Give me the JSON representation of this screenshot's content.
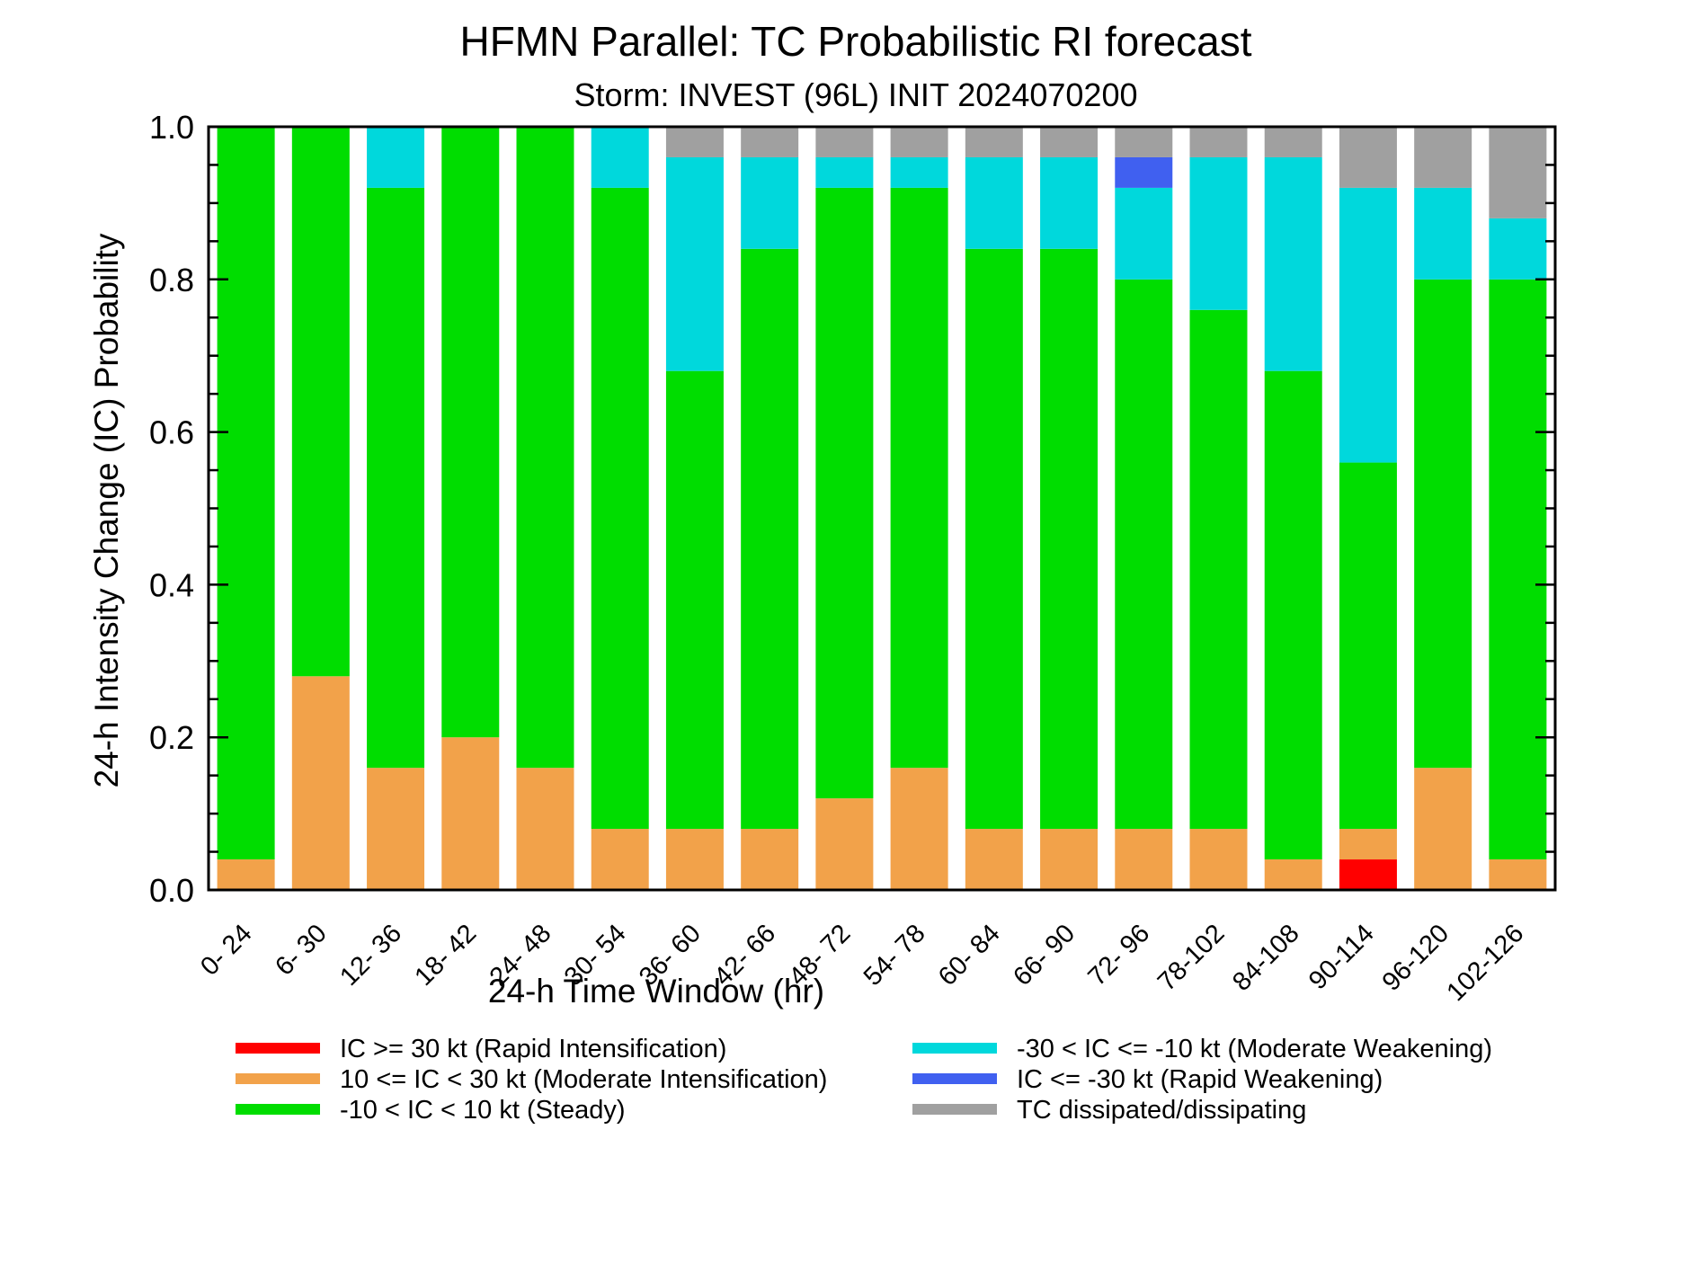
{
  "chart_data": {
    "type": "bar",
    "stacked": true,
    "title": "HFMN Parallel: TC Probabilistic RI forecast",
    "subtitle": "Storm: INVEST (96L) INIT 2024070200",
    "xlabel": "24-h Time Window (hr)",
    "ylabel": "24-h Intensity Change (IC) Probability",
    "ylim": [
      0,
      1
    ],
    "yticks": [
      "0.0",
      "0.2",
      "0.4",
      "0.6",
      "0.8",
      "1.0"
    ],
    "grid": false,
    "legend_position": "bottom",
    "categories": [
      "0- 24",
      "6- 30",
      "12- 36",
      "18- 42",
      "24- 48",
      "30- 54",
      "36- 60",
      "42- 66",
      "48- 72",
      "54- 78",
      "60- 84",
      "66- 90",
      "72- 96",
      "78-102",
      "84-108",
      "90-114",
      "96-120",
      "102-126"
    ],
    "series": [
      {
        "name": "IC >= 30 kt (Rapid Intensification)",
        "color": "#ff0000",
        "values": [
          0,
          0,
          0,
          0,
          0,
          0,
          0,
          0,
          0,
          0,
          0,
          0,
          0,
          0,
          0,
          0.04,
          0,
          0
        ]
      },
      {
        "name": "10 <= IC < 30 kt (Moderate Intensification)",
        "color": "#f2a24a",
        "values": [
          0.04,
          0.28,
          0.16,
          0.2,
          0.16,
          0.08,
          0.08,
          0.08,
          0.12,
          0.16,
          0.08,
          0.08,
          0.08,
          0.08,
          0.04,
          0.04,
          0.16,
          0.04
        ]
      },
      {
        "name": "-10 < IC < 10 kt (Steady)",
        "color": "#00dd00",
        "values": [
          0.96,
          0.72,
          0.76,
          0.8,
          0.84,
          0.84,
          0.6,
          0.76,
          0.8,
          0.76,
          0.76,
          0.76,
          0.72,
          0.68,
          0.64,
          0.48,
          0.64,
          0.76
        ]
      },
      {
        "name": "-30 < IC <= -10 kt (Moderate Weakening)",
        "color": "#00d8dc",
        "values": [
          0,
          0,
          0.08,
          0,
          0,
          0.08,
          0.28,
          0.12,
          0.04,
          0.04,
          0.12,
          0.12,
          0.12,
          0.2,
          0.28,
          0.36,
          0.12,
          0.08
        ]
      },
      {
        "name": "IC <= -30 kt (Rapid Weakening)",
        "color": "#4060f0",
        "values": [
          0,
          0,
          0,
          0,
          0,
          0,
          0,
          0,
          0,
          0,
          0,
          0,
          0.04,
          0,
          0,
          0,
          0,
          0
        ]
      },
      {
        "name": "TC dissipated/dissipating",
        "color": "#a0a0a0",
        "values": [
          0,
          0,
          0,
          0,
          0,
          0,
          0.04,
          0.04,
          0.04,
          0.04,
          0.04,
          0.04,
          0.04,
          0.04,
          0.04,
          0.08,
          0.08,
          0.12
        ]
      }
    ],
    "legend_columns": [
      [
        "IC >= 30 kt (Rapid Intensification)",
        "10 <= IC < 30 kt (Moderate Intensification)",
        "-10 < IC < 10 kt (Steady)"
      ],
      [
        "-30 < IC <= -10 kt (Moderate Weakening)",
        "IC <= -30 kt (Rapid Weakening)",
        "TC dissipated/dissipating"
      ]
    ]
  }
}
